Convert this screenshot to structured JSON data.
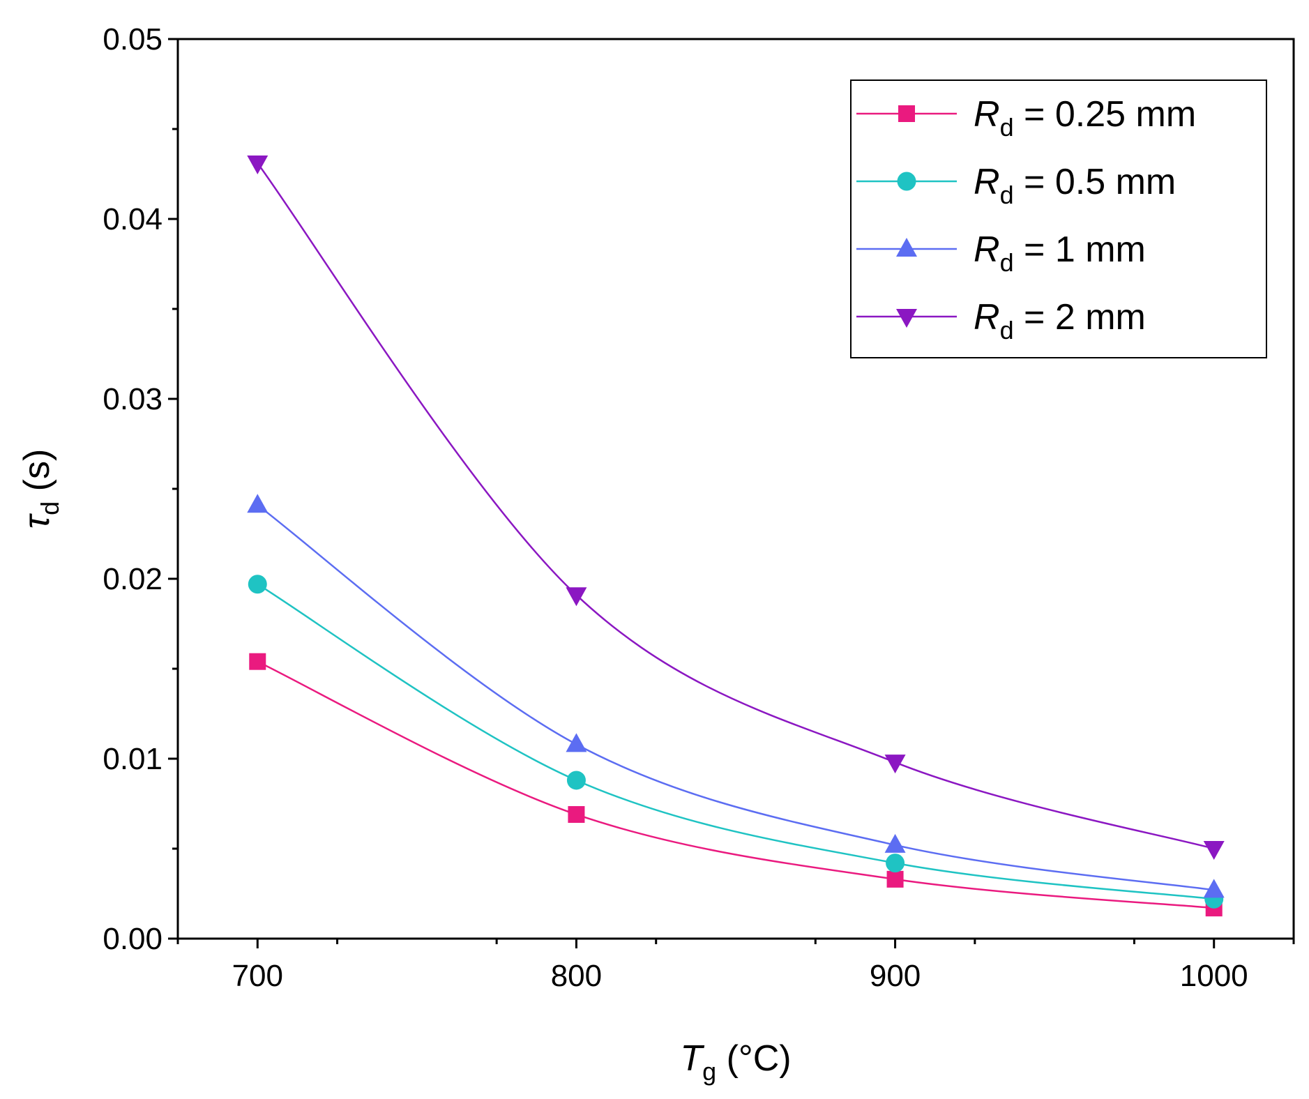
{
  "chart_data": {
    "type": "line",
    "title": "",
    "x": [
      700,
      800,
      900,
      1000
    ],
    "xlim": [
      675,
      1025
    ],
    "ylim": [
      0,
      0.05
    ],
    "xticks": [
      700,
      800,
      900,
      1000
    ],
    "xtick_labels": [
      "700",
      "800",
      "900",
      "1000"
    ],
    "yticks": [
      0,
      0.01,
      0.02,
      0.03,
      0.04,
      0.05
    ],
    "ytick_labels": [
      "0.00",
      "0.01",
      "0.02",
      "0.03",
      "0.04",
      "0.05"
    ],
    "xlabel": {
      "symbol": "T",
      "subscript": "g",
      "unit": " (°C)"
    },
    "ylabel": {
      "symbol": "τ",
      "subscript": "d",
      "unit": " (s)"
    },
    "grid": false,
    "legend_position": "top-right",
    "series": [
      {
        "name": "Rd = 0.25 mm",
        "label_symbol": "R",
        "label_subscript": "d",
        "label_rest": " = 0.25 mm",
        "color": "#ea1a7f",
        "marker": "square",
        "values": [
          0.0154,
          0.0069,
          0.0033,
          0.0017
        ]
      },
      {
        "name": "Rd = 0.5 mm",
        "label_symbol": "R",
        "label_subscript": "d",
        "label_rest": " = 0.5 mm",
        "color": "#1fc3c3",
        "marker": "circle",
        "values": [
          0.0197,
          0.0088,
          0.0042,
          0.0022
        ]
      },
      {
        "name": "Rd = 1 mm",
        "label_symbol": "R",
        "label_subscript": "d",
        "label_rest": " = 1 mm",
        "color": "#5c6df2",
        "marker": "triangle-up",
        "values": [
          0.0241,
          0.0108,
          0.0052,
          0.0027
        ]
      },
      {
        "name": "Rd = 2 mm",
        "label_symbol": "R",
        "label_subscript": "d",
        "label_rest": " = 2 mm",
        "color": "#8b17c2",
        "marker": "triangle-down",
        "values": [
          0.0431,
          0.0191,
          0.0098,
          0.005
        ]
      }
    ]
  }
}
